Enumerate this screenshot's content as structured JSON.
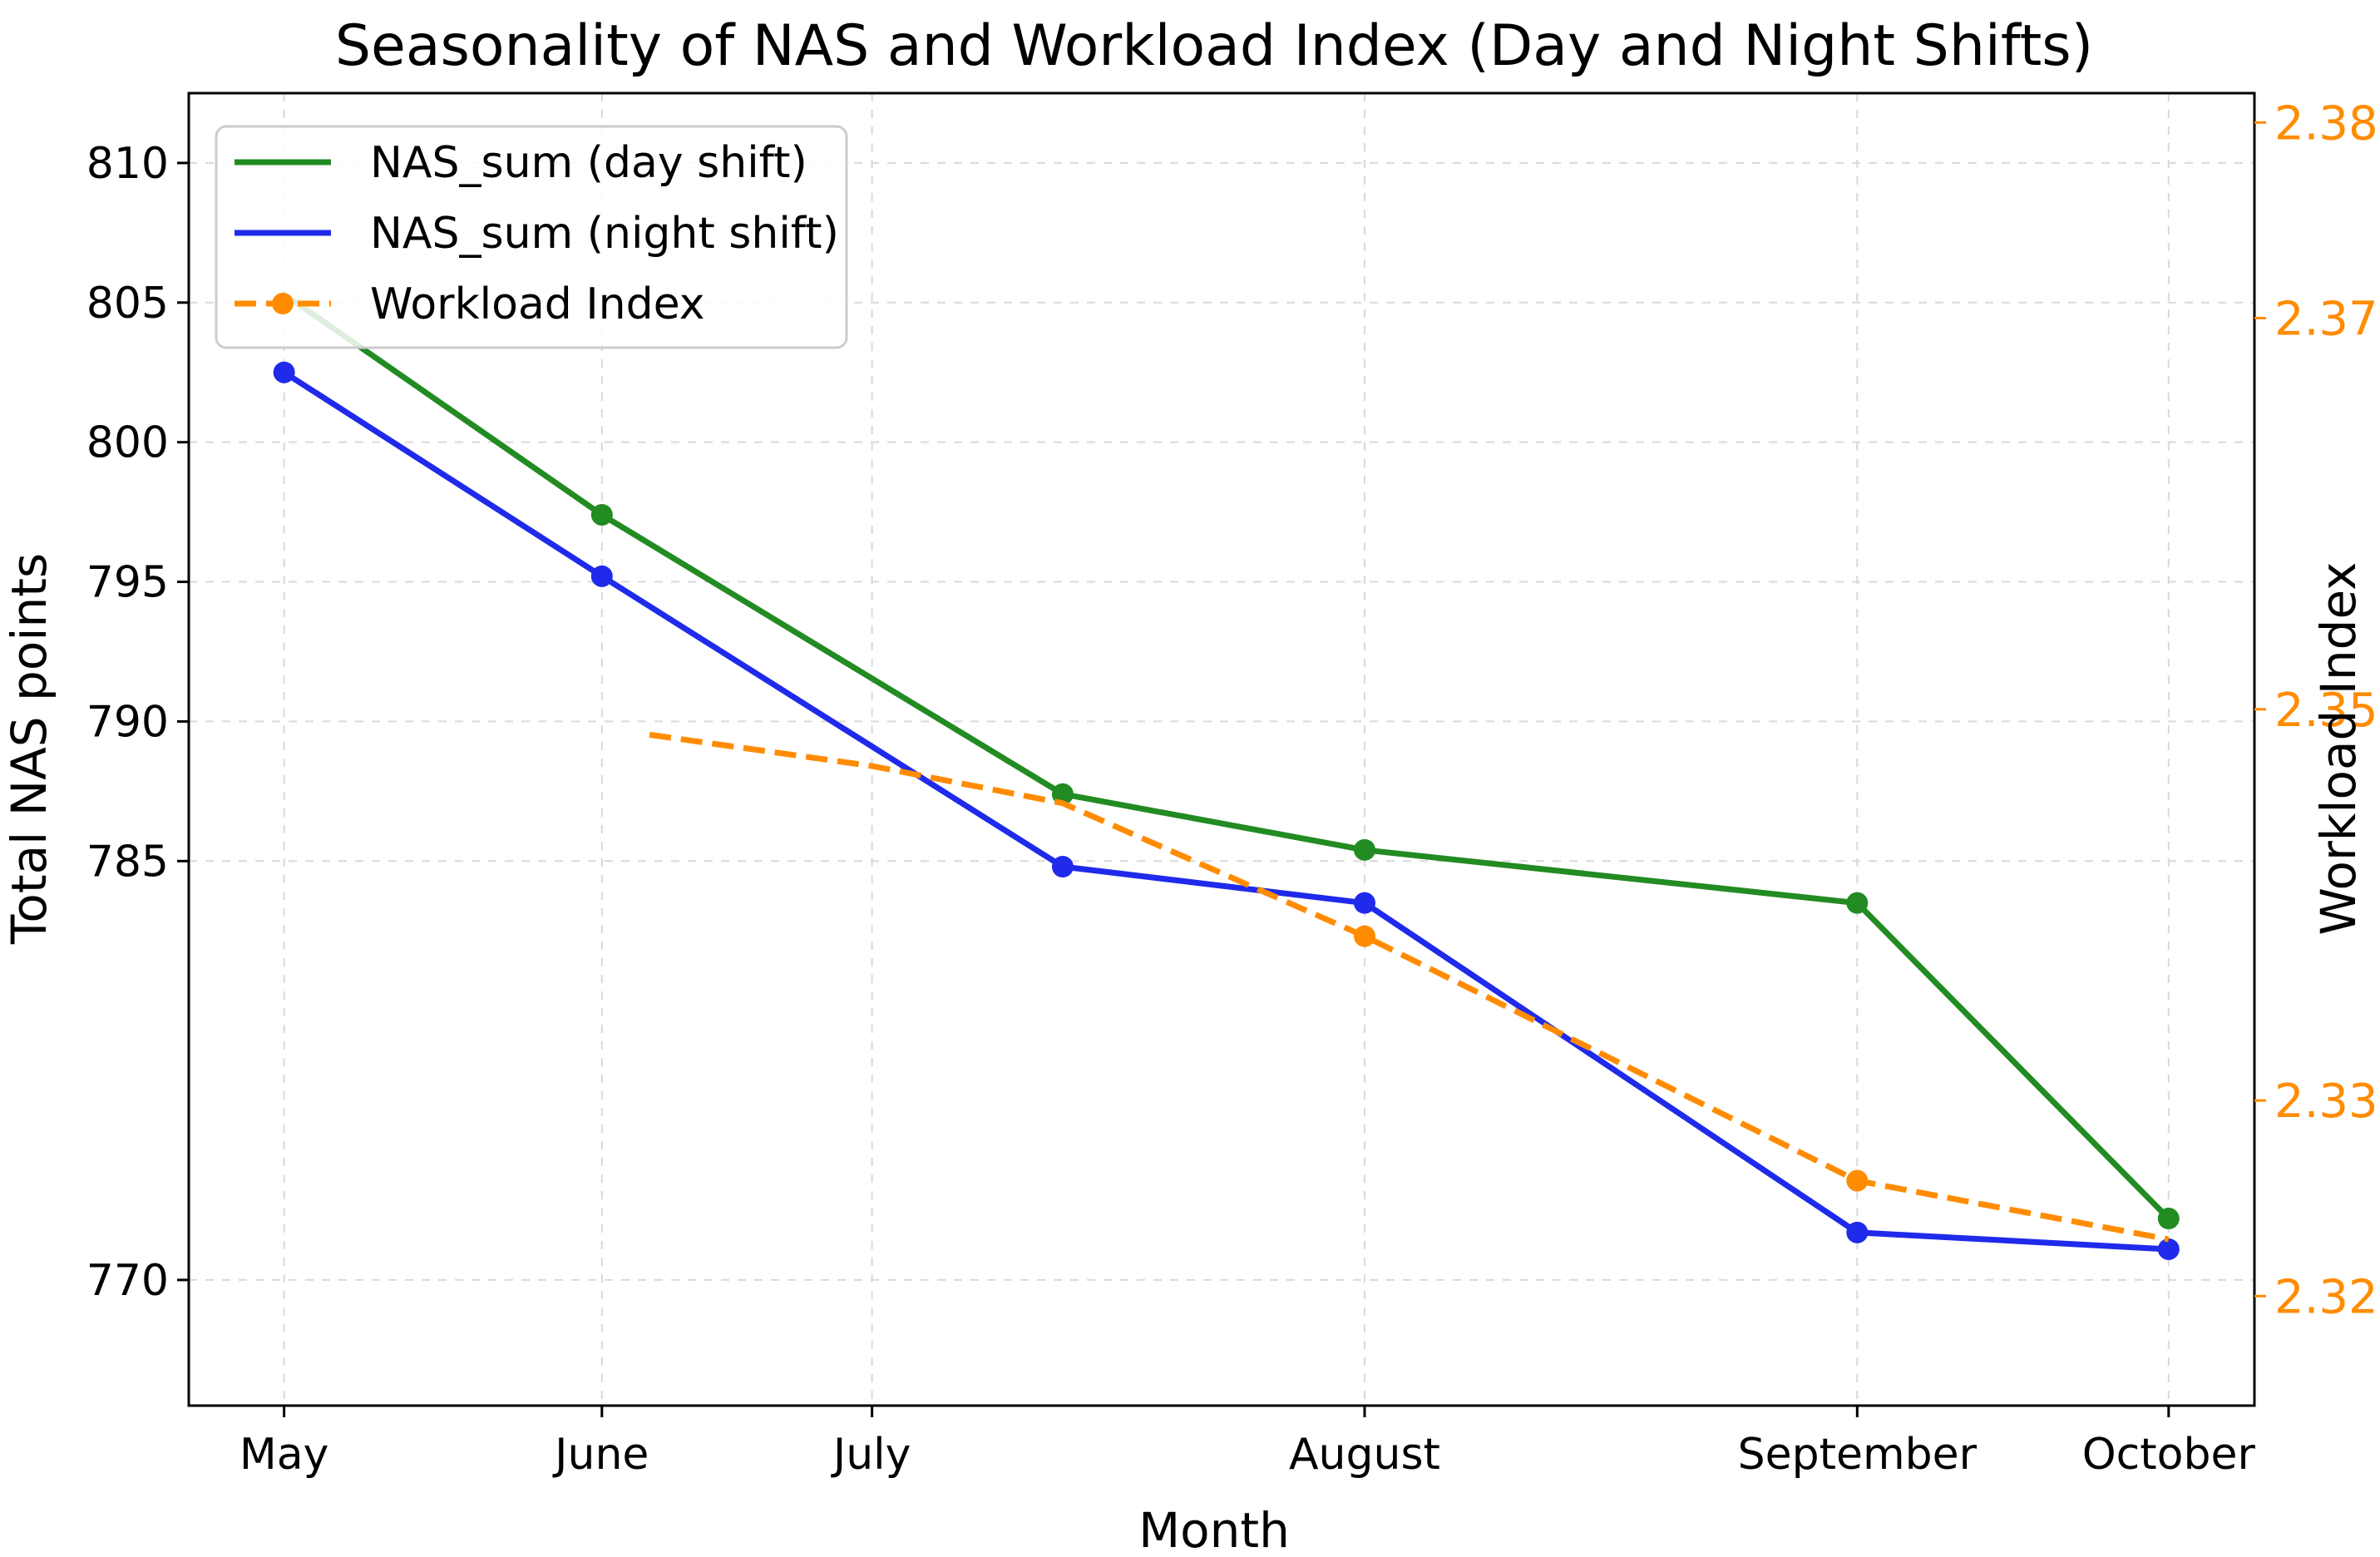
{
  "chart_data": {
    "type": "line",
    "title": "Seasonality of NAS and Workload Index (Day and Night Shifts)",
    "xlabel": "Month",
    "ylabel": "Total NAS points",
    "y2label": "Workload Index",
    "x_tick_labels": [
      {
        "label": "May",
        "x": 0
      },
      {
        "label": "June",
        "x": 1
      },
      {
        "label": "July",
        "x": 1.85
      },
      {
        "label": "August",
        "x": 3.4
      },
      {
        "label": "September",
        "x": 4.95
      },
      {
        "label": "October",
        "x": 5.93
      }
    ],
    "xlim": [
      -0.3,
      6.2
    ],
    "ylim": [
      765.5,
      812.5
    ],
    "y_ticks": [
      770,
      785,
      790,
      795,
      800,
      805,
      810
    ],
    "y2lim": [
      2.3144,
      2.3815
    ],
    "y2_ticks": [
      2.32,
      2.33,
      2.35,
      2.37,
      2.38
    ],
    "y2_tick_labels": [
      "2.32",
      "2.33",
      "2.35",
      "2.37",
      "2.38"
    ],
    "grid": true,
    "legend_position": "top-left",
    "series": [
      {
        "name": "NAS_sum (day shift)",
        "axis": "left",
        "color": "#228b22",
        "style": "solid",
        "marker": "circle",
        "points": [
          {
            "x": 0,
            "y": 805.3,
            "marker": false
          },
          {
            "x": 1,
            "y": 797.4,
            "marker": true
          },
          {
            "x": 2.45,
            "y": 787.4,
            "marker": true
          },
          {
            "x": 3.4,
            "y": 785.4,
            "marker": true
          },
          {
            "x": 4.95,
            "y": 783.5,
            "marker": true
          },
          {
            "x": 5.93,
            "y": 772.2,
            "marker": true
          }
        ]
      },
      {
        "name": "NAS_sum (night shift)",
        "axis": "left",
        "color": "#1f2aeb",
        "style": "solid",
        "marker": "circle",
        "points": [
          {
            "x": 0,
            "y": 802.5,
            "marker": true
          },
          {
            "x": 1,
            "y": 795.2,
            "marker": true
          },
          {
            "x": 2.45,
            "y": 784.8,
            "marker": true
          },
          {
            "x": 3.4,
            "y": 783.5,
            "marker": true
          },
          {
            "x": 4.95,
            "y": 771.7,
            "marker": true
          },
          {
            "x": 5.93,
            "y": 771.1,
            "marker": true
          }
        ]
      },
      {
        "name": "Workload Index",
        "axis": "right",
        "color": "#ff8c00",
        "style": "dashed",
        "marker": "circle",
        "points": [
          {
            "x": 1.15,
            "y": 2.3487,
            "marker": false
          },
          {
            "x": 1.85,
            "y": 2.3471,
            "marker": false
          },
          {
            "x": 2.45,
            "y": 2.3452,
            "marker": false
          },
          {
            "x": 3.4,
            "y": 2.3384,
            "marker": true
          },
          {
            "x": 4.95,
            "y": 2.3259,
            "marker": true
          },
          {
            "x": 5.93,
            "y": 2.3229,
            "marker": false
          }
        ]
      }
    ]
  }
}
